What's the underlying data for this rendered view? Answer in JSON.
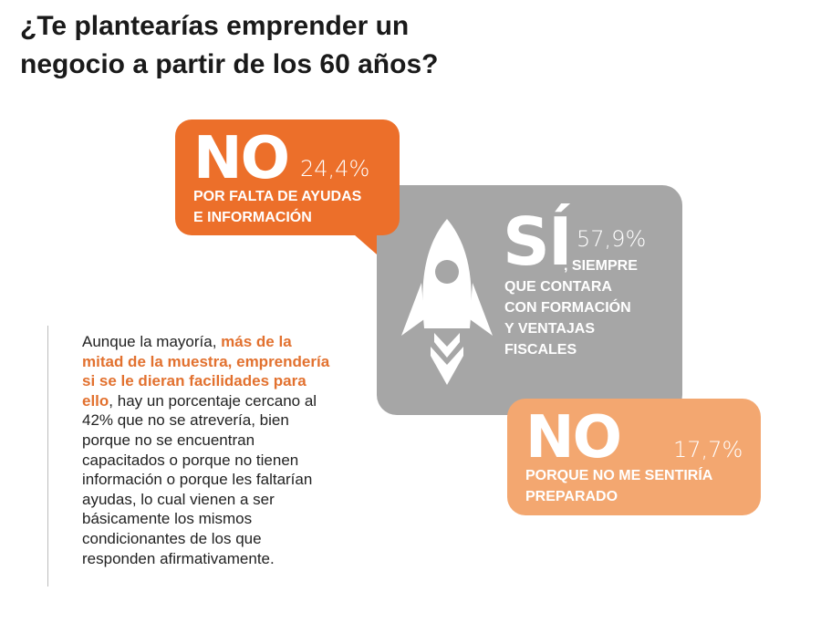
{
  "title": {
    "line1": "¿Te plantearías emprender un",
    "line2": "negocio a partir de los 60 años?"
  },
  "colors": {
    "orange": "#ec6f2a",
    "gray": "#a6a6a6",
    "light_orange": "#f3a770",
    "highlight": "#e2712f"
  },
  "answers": [
    {
      "label": "NO",
      "percent": "24,4%",
      "caption_line1": "POR FALTA DE AYUDAS",
      "caption_line2": "E INFORMACIÓN"
    },
    {
      "label": "SÍ",
      "percent": "57,9%",
      "caption_line1": ", SIEMPRE",
      "caption_line2": "QUE CONTARA",
      "caption_line3": "CON FORMACIÓN",
      "caption_line4": "Y VENTAJAS",
      "caption_line5": "FISCALES",
      "icon": "rocket-icon"
    },
    {
      "label": "NO",
      "percent": "17,7%",
      "caption_line1": "PORQUE NO ME SENTIRÍA",
      "caption_line2": "PREPARADO"
    }
  ],
  "paragraph": {
    "part1": "Aunque la mayoría, ",
    "highlight": "más de la mitad de la muestra, emprendería si se le dieran facilidades para ello",
    "part2": ", hay un porcentaje cercano al 42% que no se atrevería, bien porque no se encuentran capacitados o porque no tienen información o porque les faltarían ayudas, lo cual vienen a ser básicamente los mismos condicionantes de los que responden afirmativamente."
  }
}
